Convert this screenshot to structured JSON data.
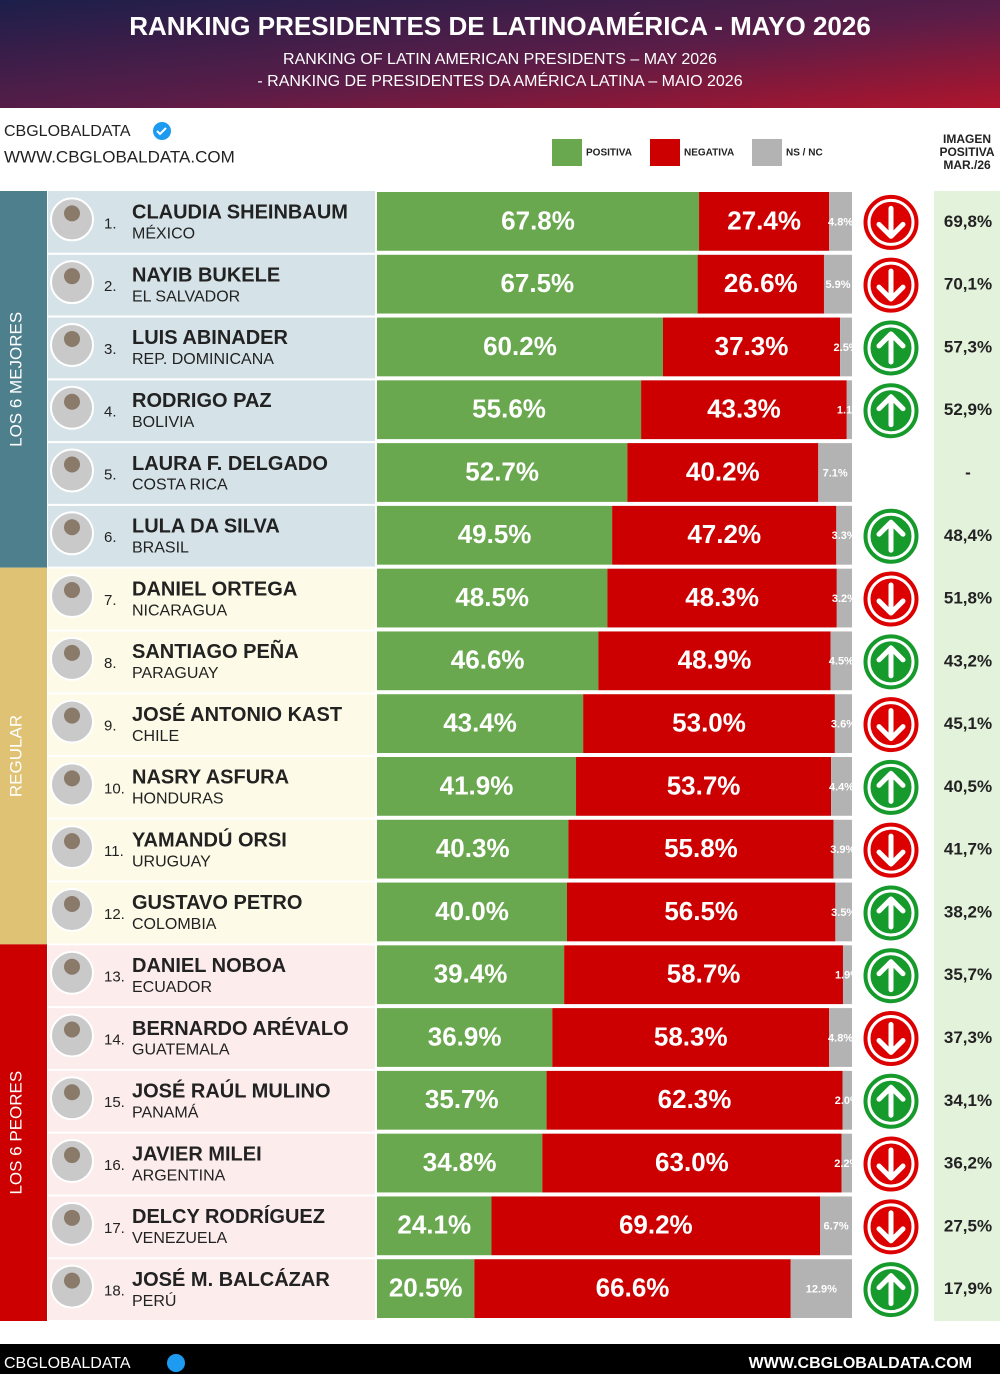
{
  "chart_data": {
    "type": "bar",
    "orientation": "horizontal",
    "stacked": true,
    "title": "RANKING PRESIDENTES DE LATINOAMÉRICA - MAYO 2026",
    "subtitle": [
      "RANKING OF LATIN AMERICAN PRESIDENTS – MAY 2026",
      "- RANKING DE PRESIDENTES DA AMÉRICA LATINA – MAIO 2026"
    ],
    "source": "CBGLOBALDATA",
    "website": "WWW.CBGLOBALDATA.COM",
    "groups": [
      {
        "label": "LOS 6 MEJORES",
        "color": "#4e7f8d",
        "row_color": "#d5e3e9"
      },
      {
        "label": "REGULAR",
        "color": "#dfc273",
        "row_color": "#fdfbe7"
      },
      {
        "label": "LOS 6 PEORES",
        "color": "#cc0000",
        "row_color": "#fcecec"
      }
    ],
    "ranks": [
      "1.",
      "2.",
      "3.",
      "4.",
      "5.",
      "6.",
      "7.",
      "8.",
      "9.",
      "10.",
      "11.",
      "12.",
      "13.",
      "14.",
      "15.",
      "16.",
      "17.",
      "18."
    ],
    "categories": [
      "CLAUDIA SHEINBAUM",
      "NAYIB BUKELE",
      "LUIS ABINADER",
      "RODRIGO PAZ",
      "LAURA F. DELGADO",
      "LULA DA SILVA",
      "DANIEL ORTEGA",
      "SANTIAGO PEÑA",
      "JOSÉ ANTONIO KAST",
      "NASRY ASFURA",
      "YAMANDÚ ORSI",
      "GUSTAVO PETRO",
      "DANIEL NOBOA",
      "BERNARDO ARÉVALO",
      "JOSÉ RAÚL MULINO",
      "JAVIER MILEI",
      "DELCY RODRÍGUEZ",
      "JOSÉ M. BALCÁZAR"
    ],
    "countries": [
      "MÉXICO",
      "EL SALVADOR",
      "REP. DOMINICANA",
      "BOLIVIA",
      "COSTA RICA",
      "BRASIL",
      "NICARAGUA",
      "PARAGUAY",
      "CHILE",
      "HONDURAS",
      "URUGUAY",
      "COLOMBIA",
      "ECUADOR",
      "GUATEMALA",
      "PANAMÁ",
      "ARGENTINA",
      "VENEZUELA",
      "PERÚ"
    ],
    "xlim": [
      0,
      100
    ],
    "series": [
      {
        "name": "POSITIVA",
        "color": "#6aa84f",
        "values": [
          67.8,
          67.5,
          60.2,
          55.6,
          52.7,
          49.5,
          48.5,
          46.6,
          43.4,
          41.9,
          40.3,
          40.0,
          39.4,
          36.9,
          35.7,
          34.8,
          24.1,
          20.5
        ],
        "value_labels": [
          "67.8%",
          "67.5%",
          "60.2%",
          "55.6%",
          "52.7%",
          "49.5%",
          "48.5%",
          "46.6%",
          "43.4%",
          "41.9%",
          "40.3%",
          "40.0%",
          "39.4%",
          "36.9%",
          "35.7%",
          "34.8%",
          "24.1%",
          "20.5%"
        ]
      },
      {
        "name": "NEGATIVA",
        "color": "#cc0000",
        "values": [
          27.4,
          26.6,
          37.3,
          43.3,
          40.2,
          47.2,
          48.3,
          48.9,
          53.0,
          53.7,
          55.8,
          56.5,
          58.7,
          58.3,
          62.3,
          63.0,
          69.2,
          66.6
        ],
        "value_labels": [
          "27.4%",
          "26.6%",
          "37.3%",
          "43.3%",
          "40.2%",
          "47.2%",
          "48.3%",
          "48.9%",
          "53.0%",
          "53.7%",
          "55.8%",
          "56.5%",
          "58.7%",
          "58.3%",
          "62.3%",
          "63.0%",
          "69.2%",
          "66.6%"
        ]
      },
      {
        "name": "NS / NC",
        "color": "#b3b3b3",
        "values": [
          4.8,
          5.9,
          2.5,
          1.1,
          7.1,
          3.3,
          3.2,
          4.5,
          3.6,
          4.4,
          3.9,
          3.5,
          1.9,
          4.8,
          2.0,
          2.2,
          6.7,
          12.9
        ],
        "value_labels": [
          "4.8%",
          "5.9%",
          "2.5%",
          "1.1%",
          "7.1%",
          "3.3%",
          "3.2%",
          "4.5%",
          "3.6%",
          "4.4%",
          "3.9%",
          "3.5%",
          "1.9%",
          "4.8%",
          "2.0%",
          "2.2%",
          "6.7%",
          "12.9%"
        ]
      }
    ],
    "trend": [
      "down",
      "down",
      "up",
      "up",
      null,
      "up",
      "down",
      "up",
      "down",
      "up",
      "down",
      "up",
      "up",
      "down",
      "up",
      "down",
      "down",
      "up"
    ],
    "trend_colors": {
      "up": "#169a2c",
      "down": "#dd0000"
    },
    "previous": {
      "title": [
        "IMAGEN",
        "POSITIVA",
        "MAR./26"
      ],
      "values": [
        69.8,
        70.1,
        57.3,
        52.9,
        null,
        48.4,
        51.8,
        43.2,
        45.1,
        40.5,
        41.7,
        38.2,
        35.7,
        37.3,
        34.1,
        36.2,
        27.5,
        17.9
      ],
      "value_labels": [
        "69,8%",
        "70,1%",
        "57,3%",
        "52,9%",
        "-",
        "48,4%",
        "51,8%",
        "43,2%",
        "45,1%",
        "40,5%",
        "41,7%",
        "38,2%",
        "35,7%",
        "37,3%",
        "34,1%",
        "36,2%",
        "27,5%",
        "17,9%"
      ]
    }
  }
}
